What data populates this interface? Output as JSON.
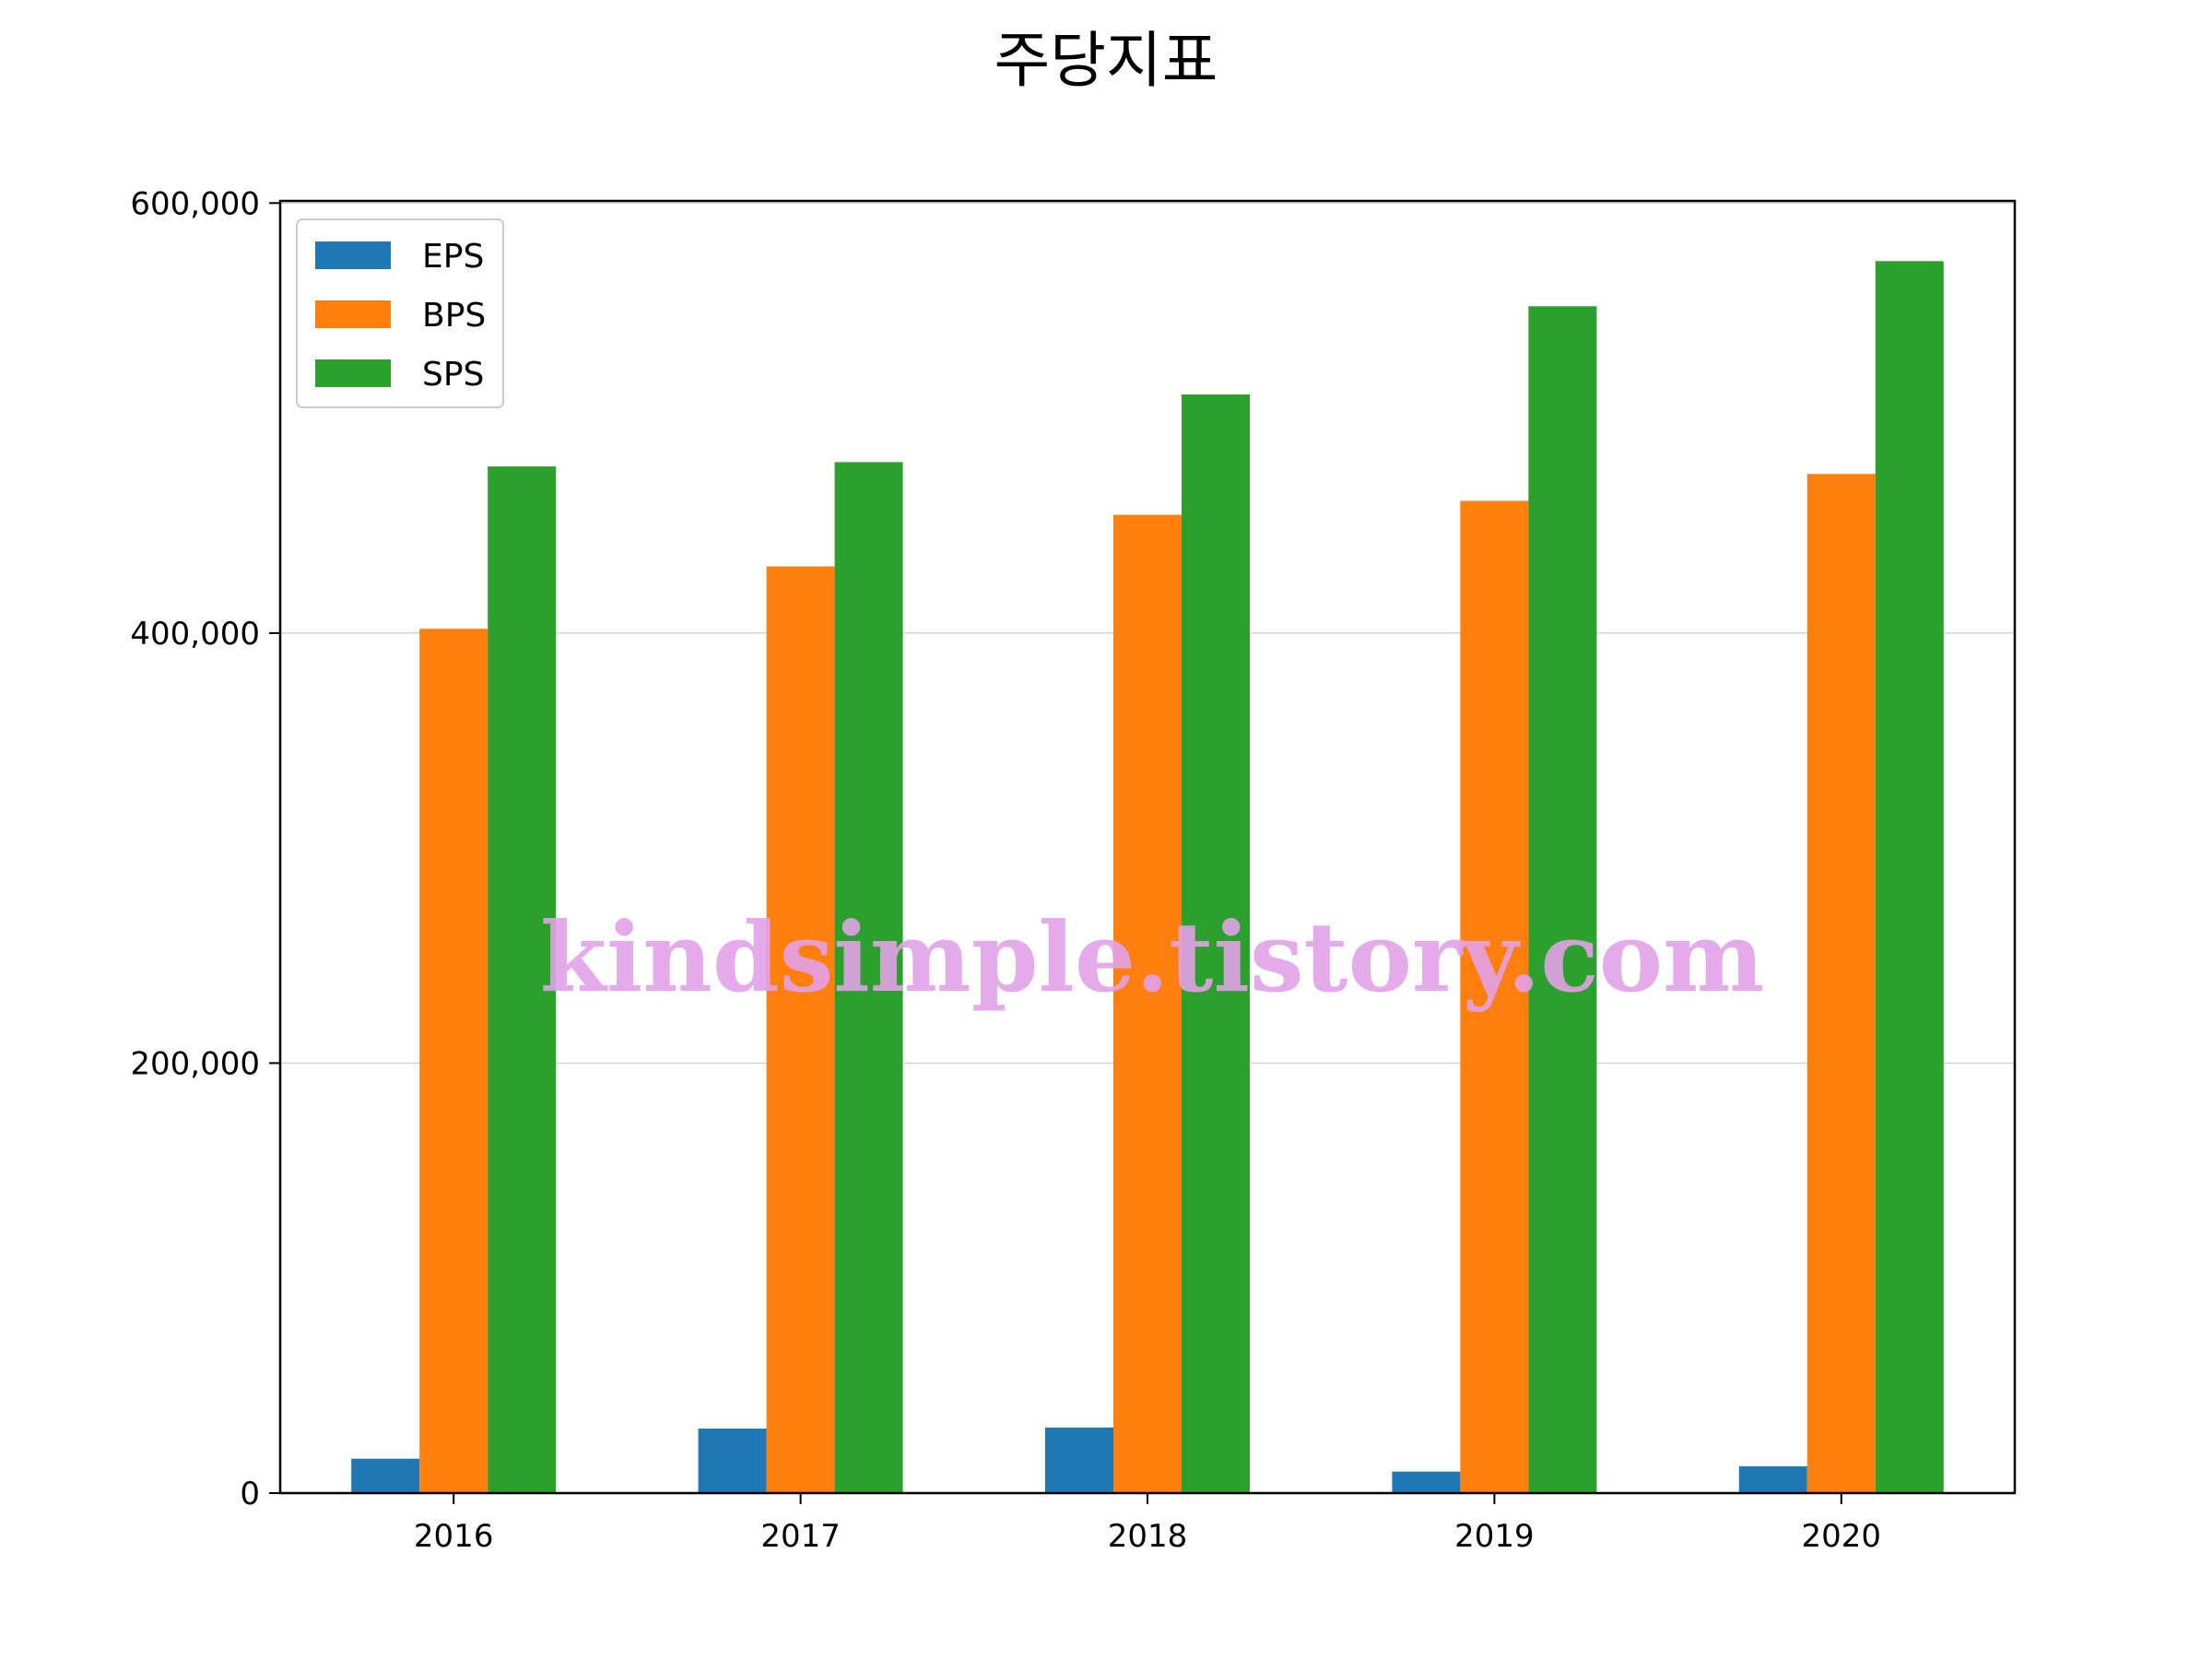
{
  "chart_data": {
    "type": "bar",
    "title": "주당지표",
    "xlabel": "",
    "ylabel": "",
    "categories": [
      "2016",
      "2017",
      "2018",
      "2019",
      "2020"
    ],
    "series": [
      {
        "name": "EPS",
        "color": "#1f77b4",
        "values": [
          16000,
          30000,
          30500,
          10000,
          12500
        ]
      },
      {
        "name": "BPS",
        "color": "#ff7f0e",
        "values": [
          402000,
          431000,
          455000,
          461500,
          474000
        ]
      },
      {
        "name": "SPS",
        "color": "#2ca02c",
        "values": [
          477500,
          479500,
          511000,
          552000,
          573000
        ]
      }
    ],
    "ylim": [
      0,
      601000
    ],
    "yticks": [
      0,
      200000,
      400000,
      600000
    ],
    "ytick_labels": [
      "0",
      "200,000",
      "400,000",
      "600,000"
    ],
    "grid": "horizontal",
    "legend_position": "top-left",
    "watermark": "kindsimple.tistory.com",
    "watermark_color": "#e2a1e8"
  }
}
